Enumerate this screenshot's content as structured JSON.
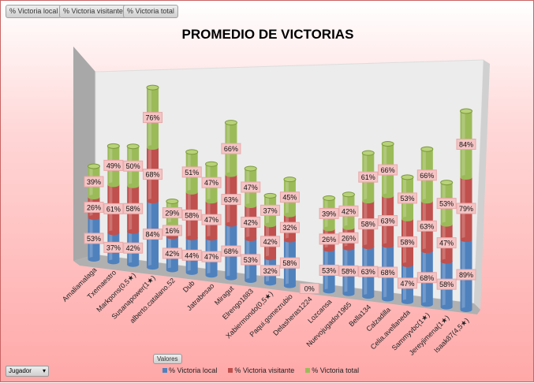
{
  "filter_buttons": [
    "% Victoria local",
    "% Victoria visitante",
    "% Victoria total"
  ],
  "jugador_label": "Jugador",
  "valores_label": "Valores",
  "chart_data": {
    "type": "bar",
    "stacked": true,
    "style": "3d-cylinder",
    "title": "PROMEDIO DE VICTORIAS",
    "categories": [
      "Amaliamalaga",
      "Txemaestro",
      "Markpons(0,5★)",
      "Susanapower(1★)",
      "alberto.catalano.52",
      "Dub",
      "Jatrabesao",
      "Miragut",
      "Elrengo1883",
      "Xabiermondo(0,5★)",
      "Paqui.gomezrubio",
      "Delasheras1224",
      "Lozcansa",
      "Nuevojugador1965",
      "Bella134",
      "Calzadilla",
      "Celia.avellaneda",
      "Sammyvbc(1★)",
      "Jereyjimena(1★)",
      "Isaak87(4,5★)"
    ],
    "series": [
      {
        "name": "% Victoria local",
        "color": "#4f81bd",
        "values": [
          53,
          37,
          42,
          84,
          42,
          44,
          47,
          68,
          53,
          32,
          58,
          0,
          53,
          58,
          63,
          68,
          47,
          68,
          58,
          89
        ]
      },
      {
        "name": "% Victoria visitante",
        "color": "#c0504d",
        "values": [
          26,
          61,
          58,
          68,
          16,
          58,
          47,
          63,
          42,
          42,
          32,
          0,
          26,
          26,
          58,
          63,
          58,
          63,
          47,
          79
        ]
      },
      {
        "name": "% Victoria total",
        "color": "#9bbb59",
        "values": [
          39,
          49,
          50,
          76,
          29,
          51,
          47,
          66,
          47,
          37,
          45,
          0,
          39,
          42,
          61,
          66,
          53,
          66,
          53,
          84
        ]
      }
    ],
    "label_suffix": "%",
    "legend": "bottom"
  }
}
